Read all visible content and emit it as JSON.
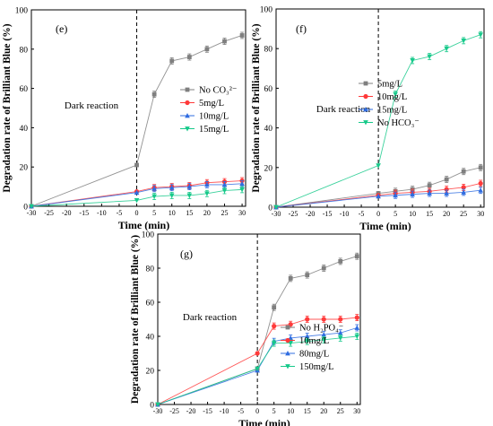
{
  "chart_data": [
    {
      "type": "line",
      "panel_label": "(e)",
      "xlabel": "Time (min)",
      "ylabel": "Degradation rate of Brilliant Blue (%)",
      "xlim": [
        -30,
        31
      ],
      "ylim": [
        0,
        100
      ],
      "xticks": [
        -30,
        -25,
        -20,
        -15,
        -10,
        -5,
        0,
        5,
        10,
        15,
        20,
        25,
        30
      ],
      "yticks": [
        0,
        20,
        40,
        60,
        80,
        100
      ],
      "annotation": "Dark reaction",
      "legend_position": "center-right",
      "series": [
        {
          "name": "No CO₃²⁻",
          "color": "#7f7f7f",
          "marker": "square",
          "x": [
            -30,
            0,
            5,
            10,
            15,
            20,
            25,
            30
          ],
          "y": [
            0,
            21,
            57,
            74,
            76,
            80,
            84,
            87
          ]
        },
        {
          "name": "5mg/L",
          "color": "#ff3a3a",
          "marker": "circle",
          "x": [
            -30,
            0,
            5,
            10,
            15,
            20,
            25,
            30
          ],
          "y": [
            0,
            7.5,
            9.5,
            10,
            10.5,
            12,
            12.5,
            13
          ]
        },
        {
          "name": "10mg/L",
          "color": "#2f6ce0",
          "marker": "triangle",
          "x": [
            -30,
            0,
            5,
            10,
            15,
            20,
            25,
            30
          ],
          "y": [
            0,
            7,
            9,
            9.5,
            10,
            11,
            11,
            11.5
          ]
        },
        {
          "name": "15mg/L",
          "color": "#16c98a",
          "marker": "triangle-down",
          "x": [
            -30,
            0,
            5,
            10,
            15,
            20,
            25,
            30
          ],
          "y": [
            0,
            3,
            5,
            5.5,
            5.5,
            6.5,
            8,
            8.5
          ]
        }
      ]
    },
    {
      "type": "line",
      "panel_label": "(f)",
      "xlabel": "Time (min)",
      "ylabel": "Degradation rate of Brilliant Blue (%)",
      "xlim": [
        -30,
        31
      ],
      "ylim": [
        0,
        100
      ],
      "xticks": [
        -30,
        -25,
        -20,
        -15,
        -10,
        -5,
        0,
        5,
        10,
        15,
        20,
        25,
        30
      ],
      "yticks": [
        0,
        20,
        40,
        60,
        80,
        100
      ],
      "annotation": "Dark reaction",
      "legend_position": "center-right",
      "series": [
        {
          "name": "5mg/L",
          "color": "#7f7f7f",
          "marker": "square",
          "x": [
            -30,
            0,
            5,
            10,
            15,
            20,
            25,
            30
          ],
          "y": [
            0,
            7,
            8,
            9,
            11,
            14,
            18,
            20
          ]
        },
        {
          "name": "10mg/L",
          "color": "#ff3a3a",
          "marker": "circle",
          "x": [
            -30,
            0,
            5,
            10,
            15,
            20,
            25,
            30
          ],
          "y": [
            0,
            6,
            7,
            7.5,
            8,
            9,
            10,
            12
          ]
        },
        {
          "name": "15mg/L",
          "color": "#2f6ce0",
          "marker": "triangle",
          "x": [
            -30,
            0,
            5,
            10,
            15,
            20,
            25,
            30
          ],
          "y": [
            0,
            5.5,
            6,
            6.5,
            7,
            7,
            7.5,
            8.5
          ]
        },
        {
          "name": "No HCO₃⁻",
          "color": "#16c98a",
          "marker": "triangle-down",
          "x": [
            -30,
            0,
            5,
            10,
            15,
            20,
            25,
            30
          ],
          "y": [
            0,
            21,
            57,
            74,
            76,
            80,
            84,
            87
          ]
        }
      ]
    },
    {
      "type": "line",
      "panel_label": "(g)",
      "xlabel": "Time (min)",
      "ylabel": "Degradation rate of Brilliant Blue (%)",
      "xlim": [
        -30,
        31
      ],
      "ylim": [
        0,
        100
      ],
      "xticks": [
        -30,
        -25,
        -20,
        -15,
        -10,
        -5,
        0,
        5,
        10,
        15,
        20,
        25,
        30
      ],
      "yticks": [
        0,
        20,
        40,
        60,
        80,
        100
      ],
      "annotation": "Dark reaction",
      "legend_position": "bottom-right",
      "series": [
        {
          "name": "No H₂PO₄⁻",
          "color": "#7f7f7f",
          "marker": "square",
          "x": [
            -30,
            0,
            5,
            10,
            15,
            20,
            25,
            30
          ],
          "y": [
            0,
            21,
            57,
            74,
            76,
            80,
            84,
            87
          ]
        },
        {
          "name": "10mg/L",
          "color": "#ff3a3a",
          "marker": "circle",
          "x": [
            -30,
            0,
            5,
            10,
            15,
            20,
            25,
            30
          ],
          "y": [
            0,
            30,
            46,
            47,
            50,
            50,
            50,
            51
          ]
        },
        {
          "name": "80mg/L",
          "color": "#2f6ce0",
          "marker": "triangle",
          "x": [
            -30,
            0,
            5,
            10,
            15,
            20,
            25,
            30
          ],
          "y": [
            0,
            20,
            37,
            39,
            40,
            41,
            42,
            45
          ]
        },
        {
          "name": "150mg/L",
          "color": "#16c98a",
          "marker": "triangle-down",
          "x": [
            -30,
            0,
            5,
            10,
            15,
            20,
            25,
            30
          ],
          "y": [
            0,
            21,
            36,
            36,
            37,
            38,
            39,
            40
          ]
        }
      ]
    }
  ]
}
